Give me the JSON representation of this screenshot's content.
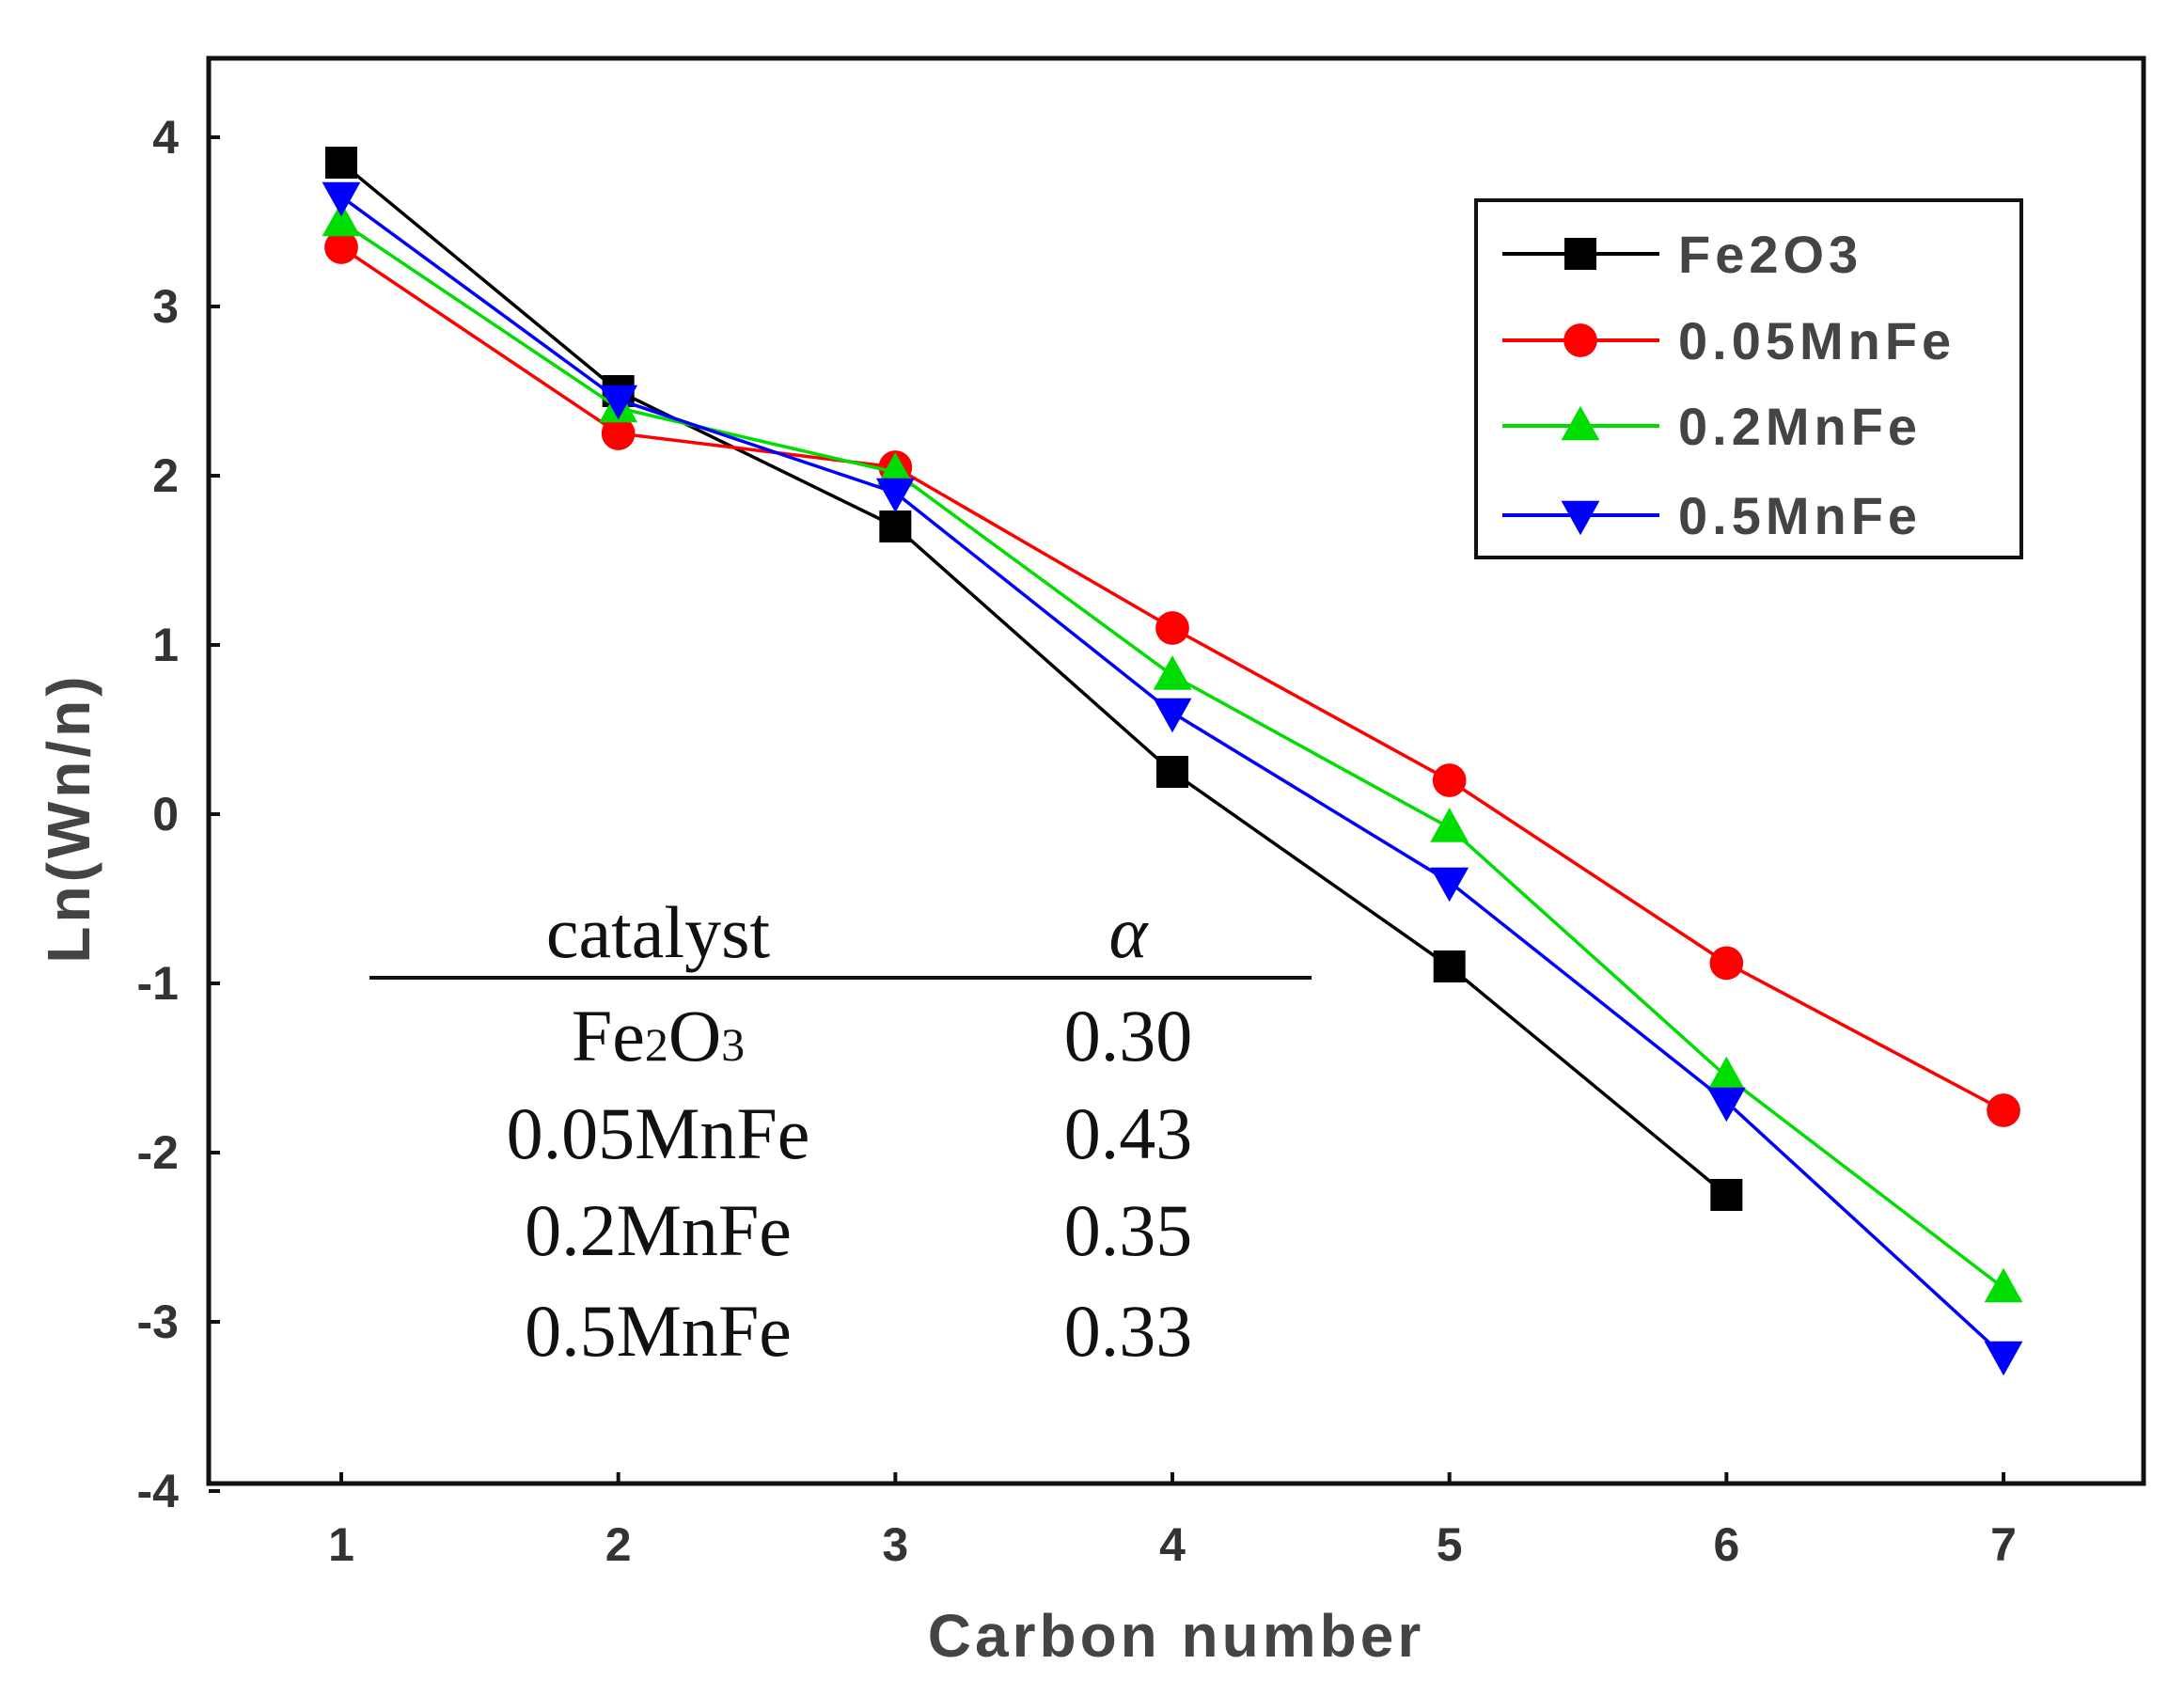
{
  "chart_data": {
    "type": "line",
    "title": "",
    "xlabel": "Carbon number",
    "ylabel": "Ln(Wn/n)",
    "xlim": [
      0.5,
      7.5
    ],
    "ylim": [
      -4,
      4.5
    ],
    "x_ticks": [
      "1",
      "2",
      "3",
      "4",
      "5",
      "6",
      "7"
    ],
    "y_ticks": [
      "4",
      "3",
      "2",
      "1",
      "0",
      "-1",
      "-2",
      "-3",
      "-4"
    ],
    "grid": false,
    "legend_position": "top-right",
    "series": [
      {
        "name": "Fe2O3",
        "color": "#000000",
        "marker": "square",
        "x": [
          1,
          2,
          3,
          4,
          5,
          6
        ],
        "y": [
          3.85,
          2.5,
          1.7,
          0.25,
          -0.9,
          -2.25
        ]
      },
      {
        "name": "0.05MnFe",
        "color": "#ff0000",
        "marker": "circle",
        "x": [
          1,
          2,
          3,
          4,
          5,
          6,
          7
        ],
        "y": [
          3.35,
          2.25,
          2.05,
          1.1,
          0.2,
          -0.88,
          -1.75
        ]
      },
      {
        "name": "0.2MnFe",
        "color": "#00dd00",
        "marker": "triangle-up",
        "x": [
          1,
          2,
          3,
          4,
          5,
          6,
          7
        ],
        "y": [
          3.5,
          2.4,
          2.02,
          0.82,
          -0.08,
          -1.55,
          -2.8
        ]
      },
      {
        "name": "0.5MnFe",
        "color": "#0000ff",
        "marker": "triangle-down",
        "x": [
          1,
          2,
          3,
          4,
          5,
          6,
          7
        ],
        "y": [
          3.65,
          2.45,
          1.9,
          0.6,
          -0.4,
          -1.7,
          -3.2
        ]
      }
    ],
    "inset_table": {
      "col_catalyst": "catalyst",
      "col_alpha": "α",
      "rows": [
        {
          "catalyst_main": "Fe",
          "catalyst_sub1": "2",
          "catalyst_mid": "O",
          "catalyst_sub2": "3",
          "catalyst_tail": "",
          "alpha": "0.30"
        },
        {
          "catalyst_main": "0.05MnFe",
          "catalyst_sub1": "",
          "catalyst_mid": "",
          "catalyst_sub2": "",
          "catalyst_tail": "",
          "alpha": "0.43"
        },
        {
          "catalyst_main": "0.2MnFe",
          "catalyst_sub1": "",
          "catalyst_mid": "",
          "catalyst_sub2": "",
          "catalyst_tail": "",
          "alpha": "0.35"
        },
        {
          "catalyst_main": "0.5MnFe",
          "catalyst_sub1": "",
          "catalyst_mid": "",
          "catalyst_sub2": "",
          "catalyst_tail": "",
          "alpha": "0.33"
        }
      ]
    }
  }
}
